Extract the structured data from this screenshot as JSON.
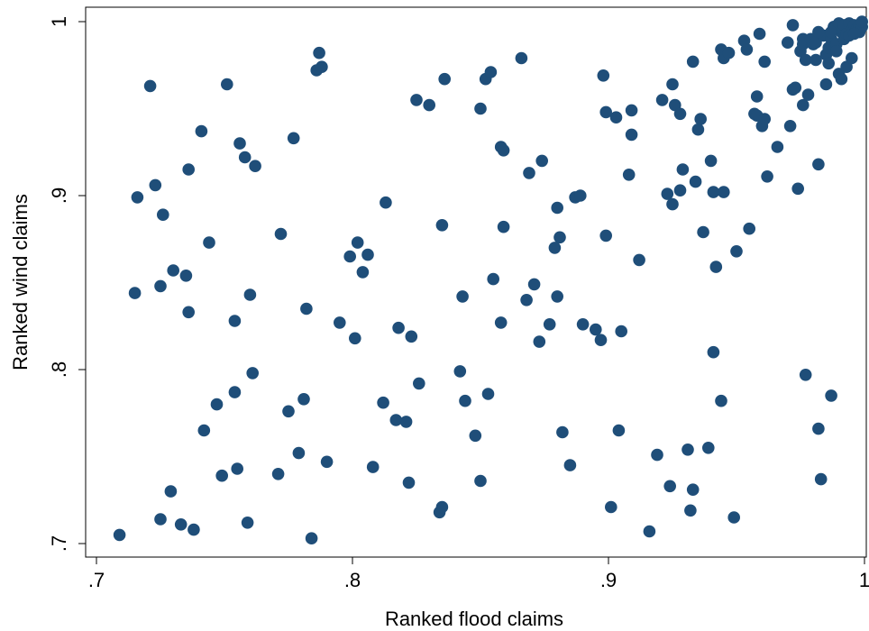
{
  "chart_data": {
    "type": "scatter",
    "xlabel": "Ranked flood claims",
    "ylabel": "Ranked wind claims",
    "xlim": [
      0.7,
      1.0
    ],
    "ylim": [
      0.7,
      1.0
    ],
    "x_ticks": [
      {
        "value": 0.7,
        "label": ".7"
      },
      {
        "value": 0.8,
        "label": ".8"
      },
      {
        "value": 0.9,
        "label": ".9"
      },
      {
        "value": 1.0,
        "label": "1"
      }
    ],
    "y_ticks": [
      {
        "value": 0.7,
        "label": ".7"
      },
      {
        "value": 0.8,
        "label": ".8"
      },
      {
        "value": 0.9,
        "label": ".9"
      },
      {
        "value": 1.0,
        "label": "1"
      }
    ],
    "grid": false,
    "marker_color": "#1f4e79",
    "points": [
      [
        0.709,
        0.705
      ],
      [
        0.715,
        0.844
      ],
      [
        0.716,
        0.899
      ],
      [
        0.721,
        0.963
      ],
      [
        0.723,
        0.906
      ],
      [
        0.725,
        0.848
      ],
      [
        0.725,
        0.714
      ],
      [
        0.726,
        0.889
      ],
      [
        0.729,
        0.73
      ],
      [
        0.73,
        0.857
      ],
      [
        0.733,
        0.711
      ],
      [
        0.735,
        0.854
      ],
      [
        0.736,
        0.833
      ],
      [
        0.736,
        0.915
      ],
      [
        0.738,
        0.708
      ],
      [
        0.741,
        0.937
      ],
      [
        0.742,
        0.765
      ],
      [
        0.744,
        0.873
      ],
      [
        0.747,
        0.78
      ],
      [
        0.749,
        0.739
      ],
      [
        0.751,
        0.964
      ],
      [
        0.754,
        0.787
      ],
      [
        0.754,
        0.828
      ],
      [
        0.755,
        0.743
      ],
      [
        0.756,
        0.93
      ],
      [
        0.758,
        0.922
      ],
      [
        0.759,
        0.712
      ],
      [
        0.76,
        0.843
      ],
      [
        0.761,
        0.798
      ],
      [
        0.762,
        0.917
      ],
      [
        0.771,
        0.74
      ],
      [
        0.772,
        0.878
      ],
      [
        0.775,
        0.776
      ],
      [
        0.777,
        0.933
      ],
      [
        0.779,
        0.752
      ],
      [
        0.781,
        0.783
      ],
      [
        0.782,
        0.835
      ],
      [
        0.784,
        0.703
      ],
      [
        0.786,
        0.972
      ],
      [
        0.787,
        0.982
      ],
      [
        0.788,
        0.974
      ],
      [
        0.79,
        0.747
      ],
      [
        0.795,
        0.827
      ],
      [
        0.799,
        0.865
      ],
      [
        0.801,
        0.818
      ],
      [
        0.802,
        0.873
      ],
      [
        0.804,
        0.856
      ],
      [
        0.806,
        0.866
      ],
      [
        0.808,
        0.744
      ],
      [
        0.812,
        0.781
      ],
      [
        0.813,
        0.896
      ],
      [
        0.817,
        0.771
      ],
      [
        0.818,
        0.824
      ],
      [
        0.821,
        0.77
      ],
      [
        0.822,
        0.735
      ],
      [
        0.823,
        0.819
      ],
      [
        0.825,
        0.955
      ],
      [
        0.826,
        0.792
      ],
      [
        0.83,
        0.952
      ],
      [
        0.834,
        0.718
      ],
      [
        0.835,
        0.721
      ],
      [
        0.835,
        0.883
      ],
      [
        0.836,
        0.967
      ],
      [
        0.842,
        0.799
      ],
      [
        0.843,
        0.842
      ],
      [
        0.844,
        0.782
      ],
      [
        0.848,
        0.762
      ],
      [
        0.85,
        0.736
      ],
      [
        0.85,
        0.95
      ],
      [
        0.852,
        0.967
      ],
      [
        0.853,
        0.786
      ],
      [
        0.854,
        0.971
      ],
      [
        0.855,
        0.852
      ],
      [
        0.858,
        0.928
      ],
      [
        0.858,
        0.827
      ],
      [
        0.859,
        0.926
      ],
      [
        0.859,
        0.882
      ],
      [
        0.866,
        0.979
      ],
      [
        0.868,
        0.84
      ],
      [
        0.869,
        0.913
      ],
      [
        0.871,
        0.849
      ],
      [
        0.873,
        0.816
      ],
      [
        0.874,
        0.92
      ],
      [
        0.877,
        0.826
      ],
      [
        0.879,
        0.87
      ],
      [
        0.88,
        0.842
      ],
      [
        0.88,
        0.893
      ],
      [
        0.881,
        0.876
      ],
      [
        0.882,
        0.764
      ],
      [
        0.885,
        0.745
      ],
      [
        0.887,
        0.899
      ],
      [
        0.889,
        0.9
      ],
      [
        0.89,
        0.826
      ],
      [
        0.895,
        0.823
      ],
      [
        0.897,
        0.817
      ],
      [
        0.898,
        0.969
      ],
      [
        0.899,
        0.948
      ],
      [
        0.899,
        0.877
      ],
      [
        0.901,
        0.721
      ],
      [
        0.903,
        0.945
      ],
      [
        0.904,
        0.765
      ],
      [
        0.905,
        0.822
      ],
      [
        0.908,
        0.912
      ],
      [
        0.909,
        0.935
      ],
      [
        0.909,
        0.949
      ],
      [
        0.912,
        0.863
      ],
      [
        0.916,
        0.707
      ],
      [
        0.919,
        0.751
      ],
      [
        0.921,
        0.955
      ],
      [
        0.923,
        0.901
      ],
      [
        0.924,
        0.733
      ],
      [
        0.925,
        0.964
      ],
      [
        0.925,
        0.895
      ],
      [
        0.926,
        0.952
      ],
      [
        0.928,
        0.903
      ],
      [
        0.928,
        0.947
      ],
      [
        0.929,
        0.915
      ],
      [
        0.931,
        0.754
      ],
      [
        0.932,
        0.719
      ],
      [
        0.933,
        0.977
      ],
      [
        0.933,
        0.731
      ],
      [
        0.934,
        0.908
      ],
      [
        0.935,
        0.938
      ],
      [
        0.936,
        0.944
      ],
      [
        0.937,
        0.879
      ],
      [
        0.939,
        0.755
      ],
      [
        0.94,
        0.92
      ],
      [
        0.941,
        0.902
      ],
      [
        0.941,
        0.81
      ],
      [
        0.942,
        0.859
      ],
      [
        0.944,
        0.984
      ],
      [
        0.944,
        0.782
      ],
      [
        0.945,
        0.902
      ],
      [
        0.945,
        0.979
      ],
      [
        0.947,
        0.982
      ],
      [
        0.949,
        0.715
      ],
      [
        0.95,
        0.868
      ],
      [
        0.953,
        0.989
      ],
      [
        0.954,
        0.984
      ],
      [
        0.955,
        0.881
      ],
      [
        0.957,
        0.947
      ],
      [
        0.958,
        0.957
      ],
      [
        0.958,
        0.946
      ],
      [
        0.959,
        0.993
      ],
      [
        0.96,
        0.94
      ],
      [
        0.961,
        0.944
      ],
      [
        0.961,
        0.977
      ],
      [
        0.962,
        0.911
      ],
      [
        0.966,
        0.928
      ],
      [
        0.97,
        0.988
      ],
      [
        0.971,
        0.94
      ],
      [
        0.972,
        0.961
      ],
      [
        0.972,
        0.998
      ],
      [
        0.973,
        0.962
      ],
      [
        0.974,
        0.904
      ],
      [
        0.975,
        0.983
      ],
      [
        0.976,
        0.987
      ],
      [
        0.976,
        0.99
      ],
      [
        0.976,
        0.952
      ],
      [
        0.977,
        0.978
      ],
      [
        0.977,
        0.797
      ],
      [
        0.978,
        0.958
      ],
      [
        0.979,
        0.99
      ],
      [
        0.98,
        0.987
      ],
      [
        0.981,
        0.978
      ],
      [
        0.981,
        0.988
      ],
      [
        0.982,
        0.766
      ],
      [
        0.982,
        0.918
      ],
      [
        0.983,
        0.737
      ],
      [
        0.984,
        0.992
      ],
      [
        0.985,
        0.964
      ],
      [
        0.985,
        0.981
      ],
      [
        0.986,
        0.985
      ],
      [
        0.986,
        0.976
      ],
      [
        0.987,
        0.99
      ],
      [
        0.987,
        0.785
      ],
      [
        0.988,
        0.997
      ],
      [
        0.989,
        0.987
      ],
      [
        0.99,
        0.999
      ],
      [
        0.99,
        0.97
      ],
      [
        0.991,
        0.994
      ],
      [
        0.991,
        0.967
      ],
      [
        0.992,
        0.998
      ],
      [
        0.992,
        0.99
      ],
      [
        0.993,
        0.993
      ],
      [
        0.993,
        0.974
      ],
      [
        0.994,
        0.999
      ],
      [
        0.995,
        0.995
      ],
      [
        0.995,
        0.979
      ],
      [
        0.996,
        0.998
      ],
      [
        0.997,
        0.996
      ],
      [
        0.998,
        0.998
      ],
      [
        0.998,
        0.994
      ],
      [
        0.999,
        0.997
      ],
      [
        0.999,
        1.0
      ],
      [
        0.987,
        0.994
      ],
      [
        0.982,
        0.994
      ],
      [
        0.989,
        0.983
      ],
      [
        0.994,
        0.992
      ],
      [
        0.996,
        0.993
      ]
    ]
  }
}
